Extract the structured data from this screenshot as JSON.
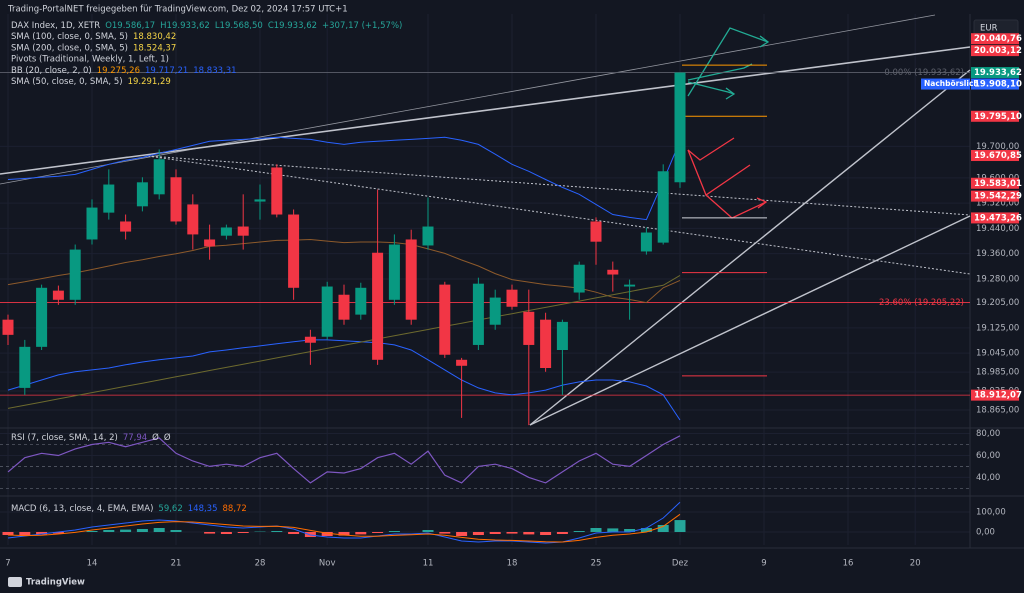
{
  "header": "Trading-PortalNET freigegeben für TradingView.com, Dez 02, 2024 17:57 UTC+1",
  "currency": "EUR",
  "brand": "TradingView",
  "chart_data": [
    {
      "type": "candlestick",
      "legend": [
        {
          "name": "DAX Index, 1D, XETR",
          "values": [
            "O19.586,17",
            "H19.933,62",
            "L19.568,50",
            "C19.933,62",
            "+307,17 (+1,57%)"
          ],
          "colors": [
            "#26a69a",
            "#26a69a",
            "#26a69a",
            "#26a69a",
            "#26a69a"
          ]
        },
        {
          "name": "SMA (100, close, 0, SMA, 5)",
          "values": [
            {
              "value": 18830.42,
              "label": "18.830,42"
            }
          ],
          "colors": [
            "#f5d547"
          ]
        },
        {
          "name": "SMA (200, close, 0, SMA, 5)",
          "values": [
            {
              "value": 18524.37,
              "label": "18.524,37"
            }
          ],
          "colors": [
            "#f5d547"
          ]
        },
        {
          "name": "Pivots (Traditional, Weekly, 1, Left, 1)",
          "values": [],
          "colors": []
        },
        {
          "name": "BB (20, close, 2, 0)",
          "values": [
            {
              "value": 19275.26,
              "label": "19.275,26"
            },
            {
              "value": 19717.21,
              "label": "19.717,21"
            },
            {
              "value": 18833.31,
              "label": "18.833,31"
            }
          ],
          "colors": [
            "#ff9800",
            "#2962ff",
            "#2962ff"
          ]
        },
        {
          "name": "SMA (50, close, 0, SMA, 5)",
          "values": [
            {
              "value": 19291.29,
              "label": "19.291,29"
            }
          ],
          "colors": [
            "#f5d547"
          ]
        }
      ],
      "categories": [
        "7",
        null,
        null,
        null,
        null,
        "14",
        null,
        null,
        null,
        null,
        "21",
        null,
        null,
        null,
        null,
        "28",
        null,
        null,
        null,
        "Nov",
        null,
        null,
        null,
        null,
        null,
        "11",
        null,
        null,
        null,
        null,
        "18",
        null,
        null,
        null,
        null,
        "25",
        null,
        null,
        null,
        null,
        "Dez",
        null,
        null,
        null,
        null,
        "9",
        null,
        null,
        null,
        null,
        "16",
        null,
        null,
        null,
        "20",
        null,
        null,
        null
      ],
      "open": [
        19151,
        18935,
        19065,
        19243,
        19214,
        19405,
        19490,
        19462,
        19510,
        19548,
        19602,
        19516,
        19405,
        19417,
        19446,
        19525,
        19633,
        19484,
        19097,
        19097,
        19230,
        19167,
        19363,
        19214,
        19405,
        19386,
        19262,
        19024,
        19071,
        19135,
        19246,
        19176,
        19151,
        19055,
        19237,
        19462,
        19309,
        19256,
        19367,
        19395,
        19586.17,
        null,
        null,
        null,
        null,
        null,
        null,
        null,
        null,
        null,
        null,
        null,
        null,
        null,
        null,
        null,
        null,
        null
      ],
      "high": [
        19167,
        19087,
        19262,
        19259,
        19389,
        19532,
        19627,
        19484,
        19602,
        19690,
        19627,
        19548,
        19452,
        19452,
        19548,
        19579,
        19643,
        19500,
        19119,
        19271,
        19262,
        19268,
        19563,
        19421,
        19436,
        19538,
        19271,
        19030,
        19284,
        19246,
        19262,
        19246,
        19173,
        19151,
        19335,
        19475,
        19335,
        19278,
        19443,
        19643,
        19933.62,
        null,
        null,
        null,
        null,
        null,
        null,
        null,
        null,
        null,
        null,
        null,
        null,
        null,
        null,
        null,
        null,
        null
      ],
      "low": [
        19071,
        18913,
        19055,
        19198,
        19198,
        19389,
        19468,
        19405,
        19494,
        19532,
        19452,
        19373,
        19341,
        19405,
        19373,
        19468,
        19475,
        19214,
        19008,
        19087,
        19135,
        19151,
        19008,
        19198,
        19135,
        19373,
        19030,
        18840,
        19055,
        19119,
        19183,
        18817,
        18986,
        18913,
        19214,
        19325,
        19240,
        19151,
        19357,
        19389,
        19568.5,
        null,
        null,
        null,
        null,
        null,
        null,
        null,
        null,
        null,
        null,
        null,
        null,
        null,
        null,
        null,
        null,
        null
      ],
      "close": [
        19103,
        19065,
        19252,
        19214,
        19373,
        19506,
        19579,
        19430,
        19586,
        19659,
        19462,
        19421,
        19383,
        19443,
        19417,
        19532,
        19484,
        19252,
        19078,
        19256,
        19151,
        19252,
        19024,
        19389,
        19151,
        19446,
        19040,
        19005,
        19265,
        19221,
        19192,
        19071,
        18998,
        19144,
        19325,
        19398,
        19294,
        19262,
        19427,
        19621,
        19933.62,
        null,
        null,
        null,
        null,
        null,
        null,
        null,
        null,
        null,
        null,
        null,
        null,
        null,
        null,
        null,
        null,
        null
      ],
      "up_color": "#089981",
      "down_color": "#f23645",
      "lines": [
        {
          "color": "#2962ff",
          "values": [
            19595,
            19598,
            19602,
            19605,
            19611,
            19627,
            19643,
            19656,
            19665,
            19678,
            19690,
            19703,
            19716,
            19719,
            19722,
            19725,
            19729,
            19725,
            19722,
            19713,
            19706,
            19713,
            19716,
            19719,
            19722,
            19725,
            19729,
            19719,
            19706,
            19675,
            19643,
            19621,
            19595,
            19570,
            19548,
            19516,
            19484,
            19475,
            19468,
            19590,
            19717.21,
            null,
            null,
            null,
            null,
            null,
            null,
            null,
            null,
            null,
            null,
            null,
            null,
            null,
            null,
            null,
            null,
            null
          ]
        },
        {
          "color": "#2962ff",
          "values": [
            18928,
            18944,
            18960,
            18976,
            18986,
            18992,
            18998,
            19008,
            19017,
            19024,
            19030,
            19036,
            19049,
            19055,
            19062,
            19068,
            19075,
            19081,
            19087,
            19087,
            19084,
            19081,
            19078,
            19071,
            19055,
            19024,
            18992,
            18960,
            18935,
            18919,
            18913,
            18919,
            18928,
            18944,
            18954,
            18960,
            18960,
            18954,
            18941,
            18913,
            18833.31,
            null,
            null,
            null,
            null,
            null,
            null,
            null,
            null,
            null,
            null,
            null,
            null,
            null,
            null,
            null,
            null,
            null
          ]
        },
        {
          "color": "#8d5a2b",
          "values": [
            19262,
            19271,
            19281,
            19291,
            19299,
            19310,
            19321,
            19332,
            19341,
            19351,
            19360,
            19370,
            19383,
            19387,
            19392,
            19397,
            19402,
            19403,
            19405,
            19400,
            19395,
            19397,
            19397,
            19395,
            19389,
            19375,
            19361,
            19340,
            19321,
            19297,
            19278,
            19270,
            19262,
            19257,
            19251,
            19238,
            19222,
            19215,
            19205,
            19252,
            19275.26,
            null,
            null,
            null,
            null,
            null,
            null,
            null,
            null,
            null,
            null,
            null,
            null,
            null,
            null,
            null,
            null,
            null
          ]
        },
        {
          "color": "#6d6a2e",
          "values": [
            18870,
            18880,
            18890,
            18900,
            18910,
            18920,
            18930,
            18940,
            18950,
            18960,
            18970,
            18980,
            18990,
            19000,
            19010,
            19020,
            19030,
            19040,
            19050,
            19060,
            19070,
            19080,
            19090,
            19100,
            19110,
            19120,
            19130,
            19140,
            19150,
            19160,
            19170,
            19180,
            19190,
            19200,
            19210,
            19220,
            19230,
            19240,
            19250,
            19260,
            19291.29,
            null,
            null,
            null,
            null,
            null,
            null,
            null,
            null,
            null,
            null,
            null,
            null,
            null,
            null,
            null,
            null,
            null
          ]
        }
      ],
      "levels": [
        {
          "value": 19933.62,
          "label": "0.00% (19.933,62)",
          "color": "#5d606b"
        },
        {
          "value": 19205.22,
          "label": "23.60% (19.205,22)",
          "color": "#f23645"
        }
      ],
      "pivots": [
        {
          "value": 19957,
          "color": "#ff9800"
        },
        {
          "value": 19795.1,
          "color": "#ff9800"
        },
        {
          "value": 19473.26,
          "color": "#d1d4dc"
        },
        {
          "value": 19300,
          "color": "#f23645"
        },
        {
          "value": 18973,
          "color": "#f23645"
        }
      ],
      "price_labels": [
        {
          "value": 20040.76,
          "label": "20.040,76",
          "color": "#f23645"
        },
        {
          "value": 20003.12,
          "label": "20.003,12",
          "color": "#f23645"
        },
        {
          "value": 19933.62,
          "label": "19.933,62",
          "color": "#089981"
        },
        {
          "value": 19908.1,
          "label": "19.908,10",
          "color": "#2962ff",
          "tag": "Nachbörslich"
        },
        {
          "value": 19795.1,
          "label": "19.795,10",
          "color": "#f23645"
        },
        {
          "value": 19670.85,
          "label": "19.670,85",
          "color": "#f23645"
        },
        {
          "value": 19583.01,
          "label": "19.583,01",
          "color": "#f23645"
        },
        {
          "value": 19542.29,
          "label": "19.542,29",
          "color": "#f23645"
        },
        {
          "value": 19473.26,
          "label": "19.473,26",
          "color": "#f23645"
        },
        {
          "value": 18912.07,
          "label": "18.912,07",
          "color": "#f23645",
          "line": true
        }
      ],
      "ylim": [
        18808,
        20119
      ],
      "yticks": [
        {
          "value": 19700,
          "label": "19.700,00"
        },
        {
          "value": 19600,
          "label": "19.600,00"
        },
        {
          "value": 19520,
          "label": "19.520,00"
        },
        {
          "value": 19440,
          "label": "19.440,00"
        },
        {
          "value": 19360,
          "label": "19.360,00"
        },
        {
          "value": 19280,
          "label": "19.280,00"
        },
        {
          "value": 19205,
          "label": "19.205,00"
        },
        {
          "value": 19125,
          "label": "19.125,00"
        },
        {
          "value": 19045,
          "label": "19.045,00"
        },
        {
          "value": 18985,
          "label": "18.985,00"
        },
        {
          "value": 18925,
          "label": "18.925,00"
        },
        {
          "value": 18865,
          "label": "18.865,00"
        }
      ],
      "grid": true
    },
    {
      "type": "line",
      "legend": [
        {
          "name": "RSI (7, close, SMA, 14, 2)",
          "values": [
            {
              "value": 77.94,
              "label": "77,94"
            },
            "Ø",
            "Ø"
          ],
          "colors": [
            "#7e57c2",
            "#d1d4dc",
            "#d1d4dc"
          ]
        }
      ],
      "values": [
        45,
        58,
        62,
        60,
        66,
        70,
        72,
        68,
        72,
        76,
        62,
        55,
        50,
        52,
        50,
        58,
        62,
        48,
        35,
        45,
        44,
        48,
        58,
        62,
        52,
        64,
        42,
        35,
        50,
        52,
        48,
        40,
        35,
        45,
        55,
        62,
        52,
        50,
        60,
        70,
        77.94
      ],
      "color": "#7e57c2",
      "bands": [
        70,
        50,
        30
      ],
      "ylim": [
        24,
        85
      ],
      "yticks": [
        {
          "value": 80,
          "label": "80,00"
        },
        {
          "value": 60,
          "label": "60,00"
        },
        {
          "value": 40,
          "label": "40,00"
        }
      ],
      "grid": true
    },
    {
      "type": "macd",
      "legend": [
        {
          "name": "MACD (6, 13, close, 4, EMA, EMA)",
          "values": [
            {
              "value": 59.62,
              "label": "59,62"
            },
            {
              "value": 148.35,
              "label": "148,35"
            },
            {
              "value": 88.72,
              "label": "88,72"
            }
          ],
          "colors": [
            "#26a69a",
            "#2962ff",
            "#ff6d00"
          ]
        }
      ],
      "values": [
        -15,
        -18,
        -12,
        -8,
        0,
        5,
        10,
        12,
        15,
        20,
        10,
        0,
        -8,
        -10,
        -5,
        2,
        5,
        -10,
        -25,
        -20,
        -18,
        -12,
        -5,
        5,
        0,
        10,
        -8,
        -20,
        -15,
        -10,
        -8,
        -12,
        -15,
        -10,
        5,
        20,
        18,
        15,
        20,
        35,
        59.62
      ],
      "up_color": "#26a69a",
      "down_color": "#ff5252",
      "lines": [
        {
          "color": "#2962ff",
          "values": [
            -30,
            -20,
            -10,
            0,
            10,
            25,
            35,
            45,
            55,
            60,
            55,
            45,
            35,
            25,
            20,
            25,
            30,
            15,
            -15,
            -25,
            -30,
            -30,
            -20,
            -10,
            -10,
            -5,
            -25,
            -45,
            -50,
            -45,
            -45,
            -50,
            -55,
            -50,
            -30,
            -5,
            0,
            0,
            20,
            70,
            148.35
          ]
        },
        {
          "color": "#ff6d00",
          "values": [
            -15,
            -18,
            -16,
            -10,
            -2,
            10,
            20,
            30,
            40,
            48,
            52,
            50,
            44,
            37,
            30,
            28,
            29,
            23,
            8,
            -6,
            -15,
            -21,
            -21,
            -17,
            -14,
            -10,
            -16,
            -27,
            -36,
            -40,
            -42,
            -45,
            -49,
            -50,
            -42,
            -27,
            -16,
            -10,
            0,
            28,
            88.72
          ]
        }
      ],
      "ylim": [
        -65,
        170
      ],
      "yticks": [
        {
          "value": 100,
          "label": "100,00"
        },
        {
          "value": 0,
          "label": "0,00"
        }
      ],
      "grid": true
    }
  ]
}
